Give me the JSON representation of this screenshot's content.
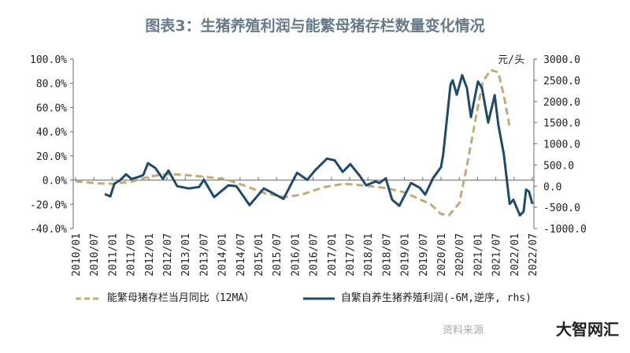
{
  "title": "图表3：生猪养殖利润与能繁母猪存栏数量变化情况",
  "source": "资料来源",
  "watermark": "大智网汇",
  "chart_data": {
    "type": "line",
    "title": "图表3：生猪养殖利润与能繁母猪存栏数量变化情况",
    "x_tick_labels": [
      "2010/01",
      "2010/07",
      "2011/01",
      "2011/07",
      "2012/01",
      "2012/07",
      "2013/01",
      "2013/07",
      "2014/01",
      "2014/07",
      "2015/01",
      "2015/07",
      "2016/01",
      "2016/07",
      "2017/01",
      "2017/07",
      "2018/01",
      "2018/07",
      "2019/01",
      "2019/07",
      "2020/01",
      "2020/07",
      "2021/01",
      "2021/07",
      "2022/01",
      "2022/07"
    ],
    "xlim": [
      2010.0,
      2022.5
    ],
    "y_left": {
      "ylim": [
        -40,
        100
      ],
      "ticks": [
        "100.0%",
        "80.0%",
        "60.0%",
        "40.0%",
        "20.0%",
        "0.0%",
        "-20.0%",
        "-40.0%"
      ]
    },
    "y_right": {
      "unit": "元/头",
      "ylim": [
        -1000,
        3000
      ],
      "ticks": [
        "3000.0",
        "2500.0",
        "2000.0",
        "1500.0",
        "1000.0",
        "500.0",
        "0.0",
        "-500.0",
        "-1000.0"
      ]
    },
    "colors": {
      "sow": "#c4a97a",
      "profit": "#1f4a6b"
    },
    "series": [
      {
        "name": "能繁母猪存栏当月同比（12MA）",
        "axis": "left",
        "style": "dashed",
        "x": [
          2010.0,
          2010.58,
          2011.01,
          2011.53,
          2012.03,
          2012.5,
          2012.89,
          2013.47,
          2014.12,
          2014.61,
          2015.19,
          2015.75,
          2016.19,
          2016.77,
          2017.35,
          2017.91,
          2018.49,
          2018.99,
          2019.72,
          2020.0,
          2020.22,
          2020.5,
          2020.71,
          2020.93,
          2021.14,
          2021.36,
          2021.57,
          2021.72,
          2021.88
        ],
        "y": [
          -1,
          -2.6,
          -3,
          -1.3,
          3,
          5,
          4.5,
          3,
          0.6,
          -4.5,
          -11,
          -14,
          -12,
          -6,
          -3,
          -4.5,
          -6.5,
          -10,
          -20,
          -28,
          -29,
          -19,
          11.6,
          48,
          81,
          91,
          89,
          70,
          44
        ]
      },
      {
        "name": "自繁自养生猪养殖利润(-6M,逆序, rhs)",
        "axis": "right",
        "style": "solid",
        "x": [
          2010.8,
          2010.95,
          2011.06,
          2011.23,
          2011.38,
          2011.53,
          2011.66,
          2011.85,
          2011.98,
          2012.18,
          2012.39,
          2012.54,
          2012.78,
          2013.1,
          2013.38,
          2013.51,
          2013.79,
          2014.18,
          2014.4,
          2014.76,
          2015.15,
          2015.32,
          2015.69,
          2016.06,
          2016.34,
          2016.55,
          2016.88,
          2017.09,
          2017.31,
          2017.52,
          2017.78,
          2017.95,
          2018.21,
          2018.32,
          2018.49,
          2018.66,
          2018.86,
          2019.18,
          2019.42,
          2019.57,
          2019.78,
          2020.0,
          2020.06,
          2020.26,
          2020.32,
          2020.43,
          2020.58,
          2020.71,
          2020.82,
          2021.01,
          2021.12,
          2021.29,
          2021.47,
          2021.57,
          2021.72,
          2021.88,
          2021.98,
          2022.16,
          2022.26,
          2022.33,
          2022.41,
          2022.5
        ],
        "y": [
          -186,
          -240,
          55,
          150,
          280,
          170,
          200,
          260,
          540,
          430,
          170,
          370,
          0,
          -55,
          -20,
          150,
          -260,
          20,
          0,
          -450,
          -55,
          -130,
          -300,
          315,
          150,
          370,
          650,
          610,
          335,
          520,
          240,
          20,
          110,
          75,
          185,
          -315,
          -465,
          75,
          -40,
          -200,
          185,
          450,
          750,
          2400,
          2500,
          2160,
          2620,
          2320,
          1630,
          2470,
          2320,
          1500,
          2150,
          1450,
          750,
          -420,
          -320,
          -690,
          -600,
          -80,
          -130,
          -420
        ]
      }
    ],
    "legend": "bottom"
  }
}
